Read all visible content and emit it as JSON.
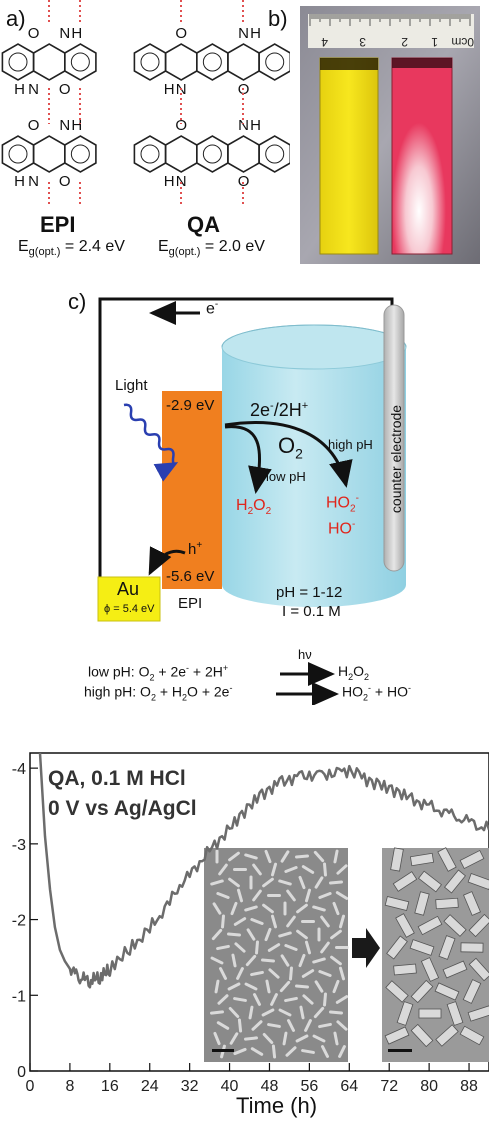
{
  "panel_a": {
    "label": "a)",
    "mol1": {
      "name": "EPI",
      "gap_label": "E",
      "gap_sub": "g(opt.)",
      "gap_value": "= 2.4 eV"
    },
    "mol2": {
      "name": "QA",
      "gap_label": "E",
      "gap_sub": "g(opt.)",
      "gap_value": "= 2.0 eV"
    },
    "atoms": {
      "O": "O",
      "N": "N",
      "H": "H"
    }
  },
  "panel_b": {
    "label": "b)",
    "ruler_numbers": [
      "4",
      "3",
      "2",
      "1",
      "0cm"
    ],
    "film_colors": {
      "yellow": "#f3e21a",
      "pink": "#e8385e"
    }
  },
  "panel_c": {
    "label": "c)",
    "electron": "e",
    "electron_sup": "-",
    "light": "Light",
    "lumo": "-2.9 eV",
    "homo": "-5.6 eV",
    "epi": "EPI",
    "hole": "h",
    "hole_sup": "+",
    "au": "Au",
    "phi": "ϕ = 5.4 eV",
    "reaction_top": "2e",
    "reaction_top_rest": "/2H",
    "o2": "O",
    "o2_sub": "2",
    "low_ph": "low pH",
    "high_ph": "high pH",
    "h2o2_a": "H",
    "h2o2_b": "2",
    "h2o2_c": "O",
    "h2o2_d": "2",
    "ho2": "HO",
    "ho2_sub": "2",
    "ho2_sup": "-",
    "ho": "HO",
    "ho_sup": "-",
    "counter_electrode": "counter electrode",
    "ph_range": "pH = 1-12",
    "ionic": "I = 0.1 M",
    "eq1_prefix": "low pH: O",
    "eq1_hv": "hν",
    "eq2_prefix": "high pH:",
    "colors": {
      "cyl": "#a9dde9",
      "epi": "#f07f1f",
      "au": "#f5ee14",
      "red": "#e0261c"
    }
  },
  "panel_d": {
    "legend_line1": "QA, 0.1 M HCl",
    "legend_line2": "0 V vs Ag/AgCl",
    "xlabel": "Time (h)"
  },
  "chart_data": {
    "type": "line",
    "title": "",
    "xlabel": "Time (h)",
    "ylabel": "",
    "x_ticks": [
      "0",
      "8",
      "16",
      "24",
      "32",
      "40",
      "48",
      "56",
      "64",
      "72",
      "80",
      "88"
    ],
    "y_ticks": [
      "-4",
      "-3",
      "-2",
      "-1",
      "0"
    ],
    "xlim": [
      0,
      92
    ],
    "ylim": [
      0,
      -4.2
    ],
    "series": [
      {
        "x": [
          2,
          3,
          4,
          5,
          6,
          7,
          8,
          9,
          10,
          11,
          12,
          13,
          14,
          15,
          16,
          18,
          20,
          22,
          24,
          26,
          28,
          30,
          32,
          34,
          36,
          38,
          40,
          42,
          44,
          46,
          48,
          50,
          52,
          54,
          56,
          58,
          60,
          62,
          64,
          66,
          68,
          70,
          72,
          74,
          76,
          78,
          80,
          82,
          84,
          86,
          88,
          90,
          92
        ],
        "y": [
          -4.2,
          -3.1,
          -2.4,
          -1.9,
          -1.6,
          -1.45,
          -1.35,
          -1.3,
          -1.25,
          -1.22,
          -1.2,
          -1.22,
          -1.25,
          -1.3,
          -1.35,
          -1.5,
          -1.62,
          -1.75,
          -1.9,
          -2.05,
          -2.25,
          -2.45,
          -2.6,
          -2.75,
          -2.92,
          -3.05,
          -3.2,
          -3.35,
          -3.5,
          -3.62,
          -3.72,
          -3.8,
          -3.85,
          -3.88,
          -3.9,
          -3.9,
          -3.92,
          -3.93,
          -3.97,
          -3.9,
          -3.82,
          -3.78,
          -3.72,
          -3.68,
          -3.6,
          -3.55,
          -3.5,
          -3.45,
          -3.4,
          -3.35,
          -3.3,
          -3.25,
          -3.2
        ]
      }
    ],
    "grid": false,
    "legend": "top-left"
  }
}
